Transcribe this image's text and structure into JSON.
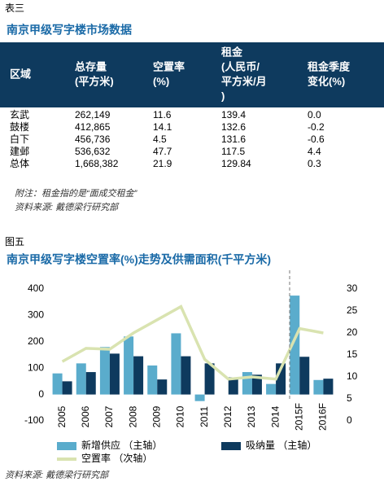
{
  "table_section": {
    "label": "表三",
    "title": "南京甲级写字楼市场数据",
    "header": [
      [
        "区域"
      ],
      [
        "总存量",
        "(平方米)"
      ],
      [
        "空置率",
        "(%)"
      ],
      [
        "租金",
        "(人民币/",
        "平方米/月",
        ")"
      ],
      [
        "租金季度",
        "变化(%)"
      ]
    ],
    "rows": [
      [
        "玄武",
        "262,149",
        "11.6",
        "139.4",
        "0.0"
      ],
      [
        "鼓楼",
        "412,865",
        "14.1",
        "132.6",
        "-0.2"
      ],
      [
        "白下",
        "456,736",
        "4.5",
        "131.6",
        "-0.6"
      ],
      [
        "建邺",
        "536,632",
        "47.7",
        "117.5",
        "4.4"
      ],
      [
        "总体",
        "1,668,382",
        "21.9",
        "129.84",
        "0.3"
      ]
    ],
    "notes": [
      "附注：租金指的是“面成交租金”",
      "资料来源: 戴德梁行研究部"
    ]
  },
  "chart_label": "图五",
  "chart_data": {
    "type": "bar",
    "title": "南京甲级写字楼空置率(%)走势及供需面积(千平方米)",
    "categories": [
      "2005",
      "2006",
      "2007",
      "2008",
      "2009",
      "2010",
      "2011",
      "2012",
      "2013",
      "2014",
      "2015F",
      "2016F"
    ],
    "series": [
      {
        "name": "新增供应 （主轴）",
        "type": "bar",
        "color": "#5aaccc",
        "values": [
          80,
          118,
          180,
          220,
          110,
          232,
          -25,
          0,
          85,
          40,
          375,
          55
        ]
      },
      {
        "name": "吸纳量 （主轴）",
        "type": "bar",
        "color": "#0e3a5e",
        "values": [
          50,
          85,
          155,
          145,
          57,
          145,
          118,
          65,
          75,
          118,
          143,
          60
        ]
      },
      {
        "name": "空置率 （次轴）",
        "type": "line",
        "axis": "y2",
        "color": "#d9e3b0",
        "values": [
          13.5,
          16.5,
          16.3,
          20,
          23,
          26,
          14,
          9.5,
          10,
          9.5,
          21,
          20
        ]
      }
    ],
    "ylim": [
      -100,
      400
    ],
    "yticks": [
      -100,
      0,
      100,
      200,
      300,
      400
    ],
    "y2lim": [
      0,
      30
    ],
    "y2ticks": [
      0,
      5,
      10,
      15,
      20,
      25,
      30
    ],
    "source": "资料来源: 戴德梁行研究部"
  }
}
